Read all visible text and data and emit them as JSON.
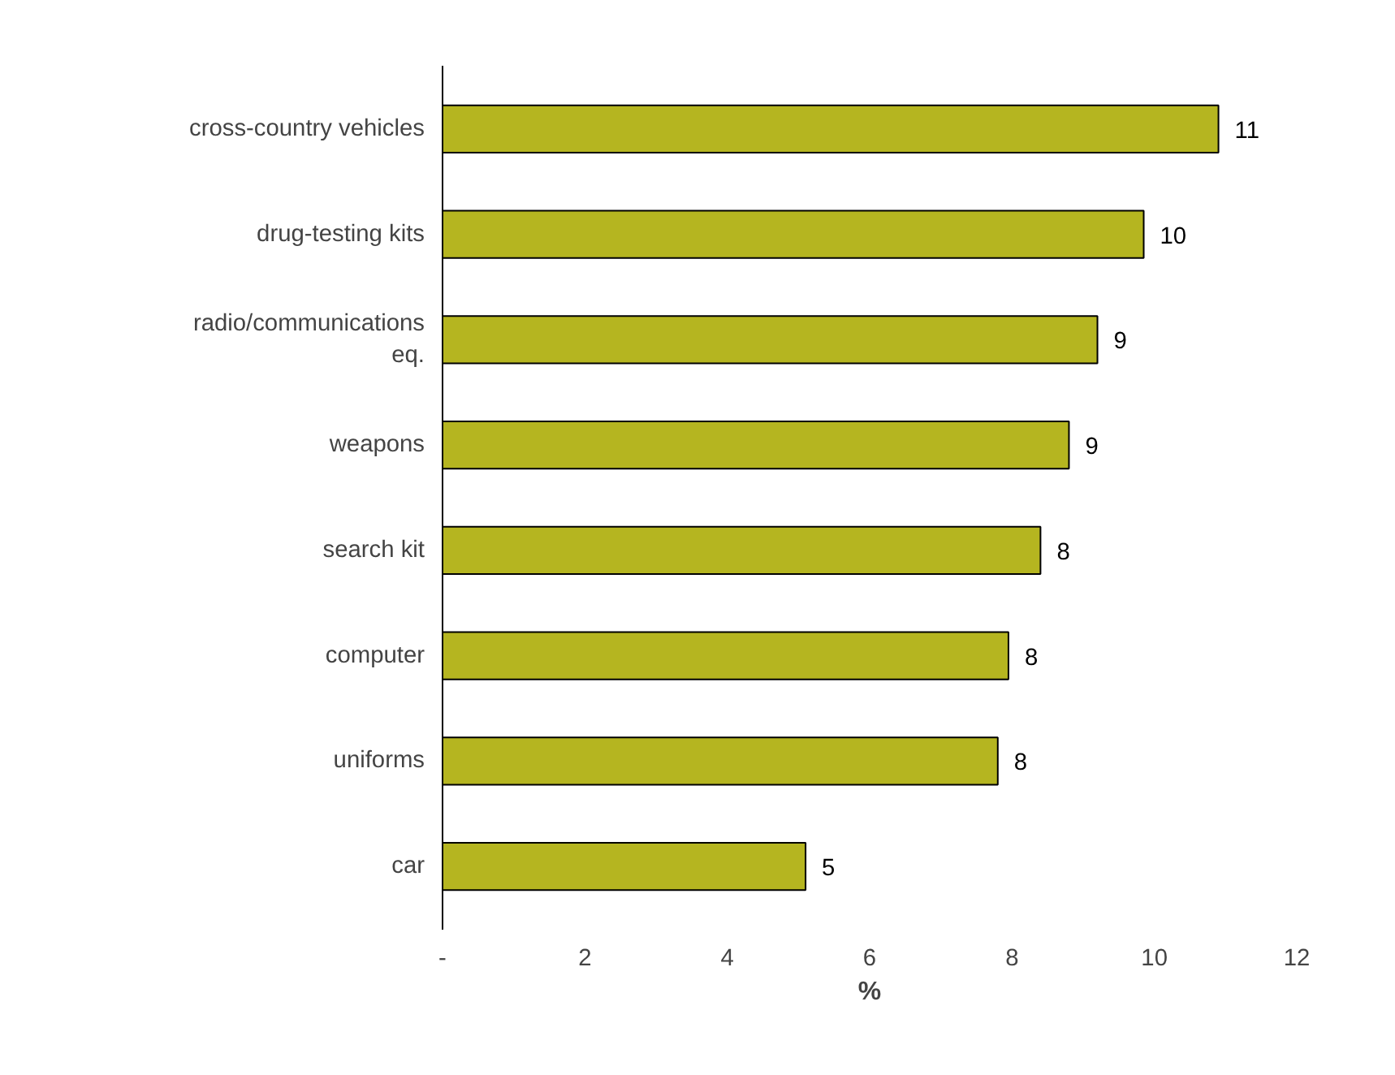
{
  "chart_data": {
    "type": "bar",
    "orientation": "horizontal",
    "xlabel": "%",
    "categories": [
      "cross-country vehicles",
      "drug-testing kits",
      "radio/communications eq.",
      "weapons",
      "search kit",
      "computer",
      "uniforms",
      "car"
    ],
    "values": [
      10.9,
      9.85,
      9.2,
      8.8,
      8.4,
      7.95,
      7.8,
      5.1
    ],
    "value_labels": [
      "11",
      "10",
      "9",
      "9",
      "8",
      "8",
      "8",
      "5"
    ],
    "color": "#b5b520",
    "xlim": [
      0,
      12
    ],
    "xticks": [
      {
        "value": 0,
        "label": "-"
      },
      2,
      4,
      6,
      8,
      10,
      12
    ],
    "grid": false
  }
}
